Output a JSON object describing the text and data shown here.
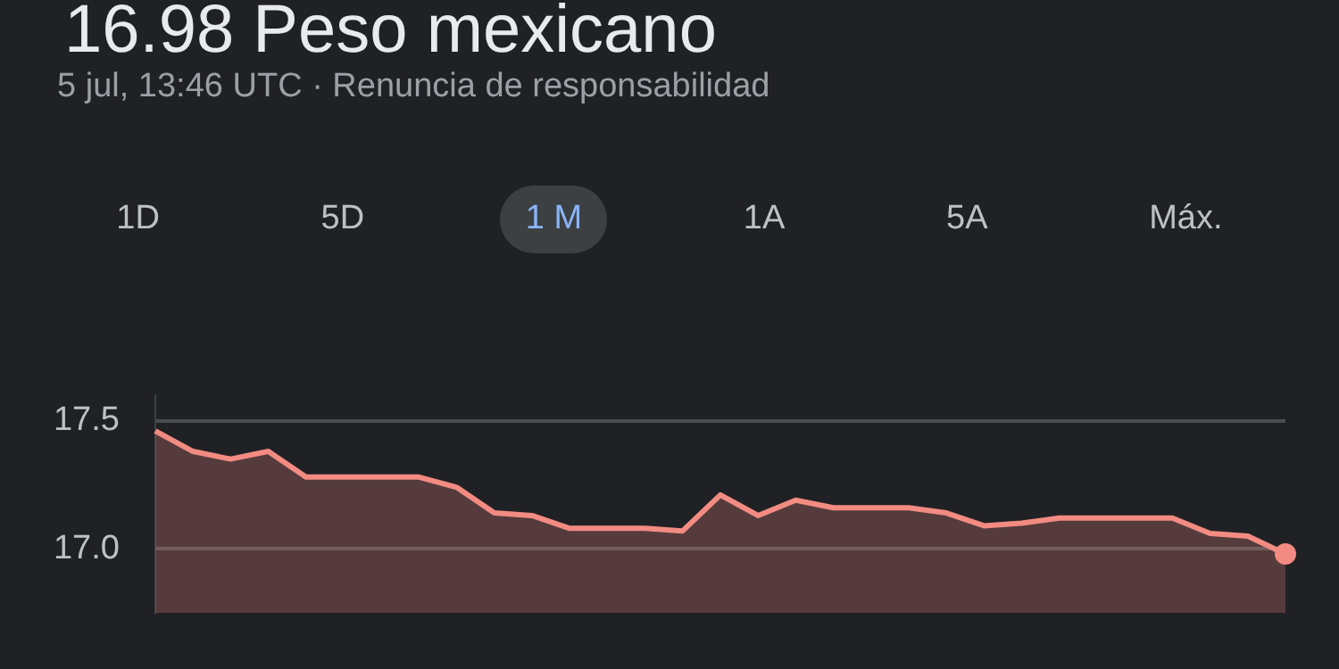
{
  "chart_data": {
    "type": "area",
    "title": "16.98 Peso mexicano",
    "subtitle": "5 jul, 13:46 UTC · Renuncia de responsabilidad",
    "annotations": [
      "1D",
      "5D",
      "1 M",
      "1A",
      "5A",
      "Máx."
    ],
    "categories": [
      null,
      null,
      null,
      null,
      null,
      null,
      null,
      null,
      null,
      null,
      null,
      null,
      null,
      null,
      null,
      null,
      null,
      null,
      null,
      null,
      null,
      null,
      null,
      null,
      null,
      null,
      null,
      null,
      null,
      null,
      null
    ],
    "series": [
      {
        "color": "#f28b82",
        "values": [
          17.46,
          17.38,
          17.35,
          17.38,
          17.28,
          17.28,
          17.28,
          17.28,
          17.24,
          17.14,
          17.13,
          17.08,
          17.08,
          17.08,
          17.07,
          17.21,
          17.13,
          17.19,
          17.16,
          17.16,
          17.16,
          17.14,
          17.09,
          17.1,
          17.12,
          17.12,
          17.12,
          17.12,
          17.06,
          17.05,
          16.98
        ]
      }
    ],
    "ylim": [
      16.75,
      17.6
    ],
    "yticks": [
      {
        "value": 17,
        "label": "17.0"
      },
      17.5
    ],
    "grid": "y",
    "legend": false
  }
}
